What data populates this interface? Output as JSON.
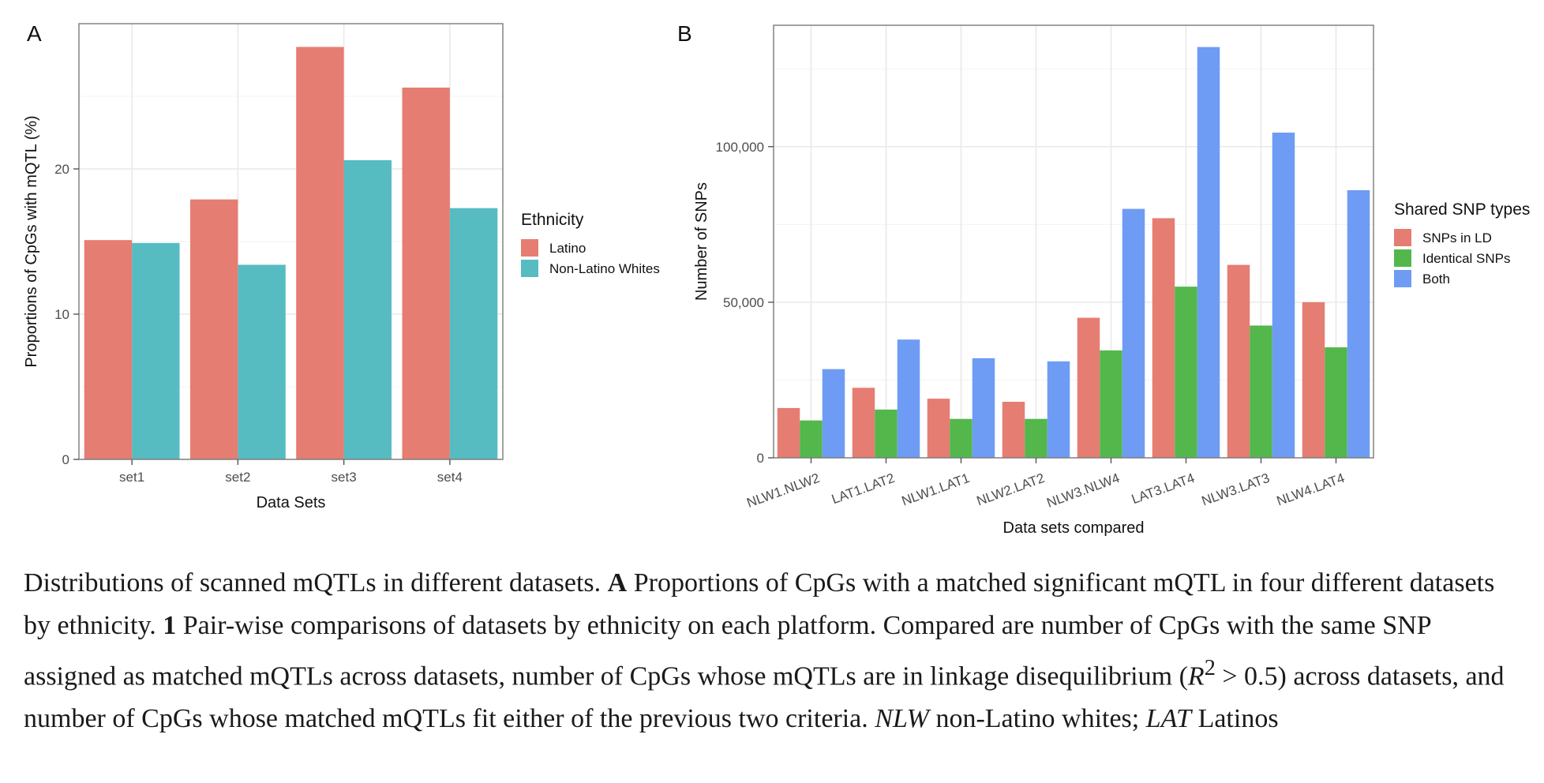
{
  "panels": {
    "a_label": "A",
    "b_label": "B"
  },
  "chart_data": [
    {
      "type": "bar",
      "panel": "A",
      "categories": [
        "set1",
        "set2",
        "set3",
        "set4"
      ],
      "series": [
        {
          "name": "Latino",
          "color": "#E67D72",
          "values": [
            15.1,
            17.9,
            28.4,
            25.6
          ]
        },
        {
          "name": "Non-Latino Whites",
          "color": "#56BCC2",
          "values": [
            14.9,
            13.4,
            20.6,
            17.3
          ]
        }
      ],
      "xlabel": "Data Sets",
      "ylabel": "Proportions of CpGs with mQTL (%)",
      "ylim": [
        0,
        30
      ],
      "yticks": [
        0,
        10,
        20
      ],
      "ytick_labels": [
        "0",
        "10",
        "20"
      ],
      "legend_title": "Ethnicity",
      "legend_position": "right",
      "grid": true
    },
    {
      "type": "bar",
      "panel": "B",
      "categories": [
        "NLW1.NLW2",
        "LAT1.LAT2",
        "NLW1.LAT1",
        "NLW2.LAT2",
        "NLW3.NLW4",
        "LAT3.LAT4",
        "NLW3.LAT3",
        "NLW4.LAT4"
      ],
      "series": [
        {
          "name": "SNPs in LD",
          "color": "#E67D72",
          "values": [
            16000,
            22500,
            19000,
            18000,
            45000,
            77000,
            62000,
            50000
          ]
        },
        {
          "name": "Identical SNPs",
          "color": "#53B74C",
          "values": [
            12000,
            15500,
            12500,
            12500,
            34500,
            55000,
            42500,
            35500
          ]
        },
        {
          "name": "Both",
          "color": "#6E9CF4",
          "values": [
            28500,
            38000,
            32000,
            31000,
            80000,
            132000,
            104500,
            86000
          ]
        }
      ],
      "xlabel": "Data sets compared",
      "ylabel": "Number of SNPs",
      "ylim": [
        0,
        139000
      ],
      "yticks": [
        0,
        50000,
        100000
      ],
      "ytick_labels": [
        "0",
        "50,000",
        "100,000"
      ],
      "legend_title": "Shared SNP types",
      "legend_position": "right",
      "grid": true
    }
  ],
  "caption": {
    "text1": "Distributions of scanned mQTLs in different datasets. ",
    "a": "A",
    "text2": " Proportions of CpGs with a matched significant mQTL in four different datasets by ethnicity. ",
    "one": "1",
    "text3": " Pair-wise comparisons of datasets by ethnicity on each platform. Compared are number of CpGs with the same SNP assigned as matched mQTLs across datasets, number of CpGs whose mQTLs are in linkage disequilibrium (",
    "r": "R",
    "sup": "2",
    "text4": " > 0.5) across datasets, and number of CpGs whose matched mQTLs fit either of the previous two criteria. ",
    "nlw": "NLW",
    "text5": " non-Latino whites; ",
    "lat": "LAT",
    "text6": " Latinos"
  }
}
